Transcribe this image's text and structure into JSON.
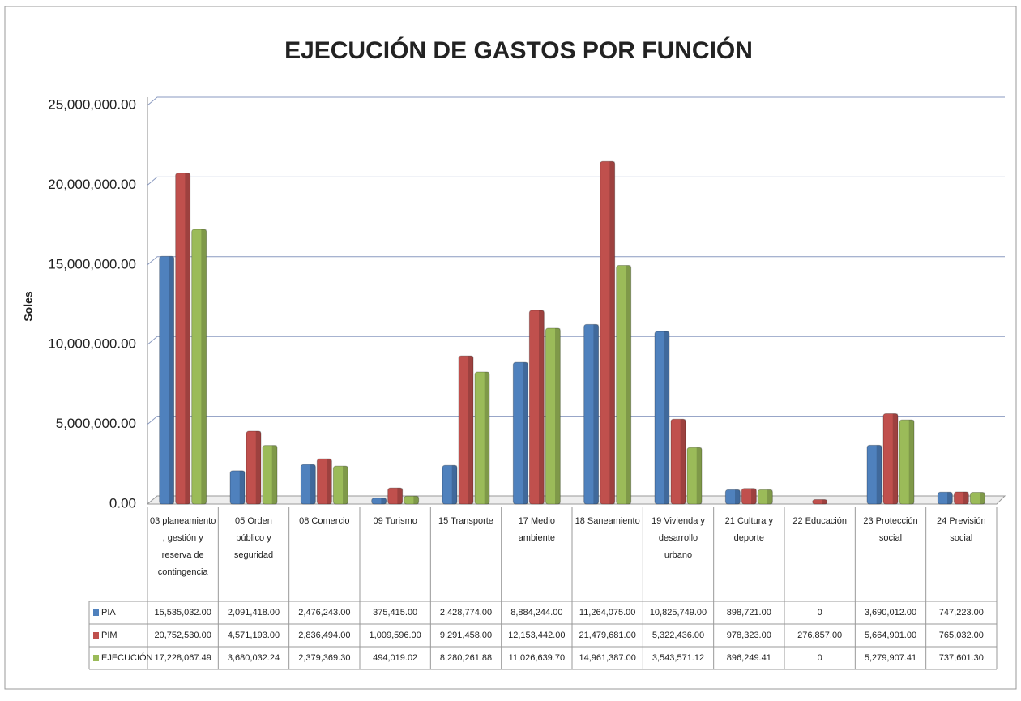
{
  "chart_data": {
    "type": "bar",
    "title": "EJECUCIÓN DE GASTOS POR FUNCIÓN",
    "y_label": "Soles",
    "categories": [
      "03 planeamiento , gestión y reserva de contingencia",
      "05 Orden público y seguridad",
      "08 Comercio",
      "09 Turismo",
      "15 Transporte",
      "17 Medio ambiente",
      "18 Saneamiento",
      "19 Vivienda y desarrollo urbano",
      "21 Cultura y deporte",
      "22 Educación",
      "23 Protección social",
      "24 Previsión social"
    ],
    "series": [
      {
        "name": "PIA",
        "color": "#4f81bd",
        "values": [
          15535032,
          2091418,
          2476243,
          375415,
          2428774,
          8884244,
          11264075,
          10825749,
          898721,
          0,
          3690012,
          747223
        ],
        "value_labels": [
          "15,535,032.00",
          "2,091,418.00",
          "2,476,243.00",
          "375,415.00",
          "2,428,774.00",
          "8,884,244.00",
          "11,264,075.00",
          "10,825,749.00",
          "898,721.00",
          "0",
          "3,690,012.00",
          "747,223.00"
        ]
      },
      {
        "name": "PIM",
        "color": "#c0504d",
        "values": [
          20752530,
          4571193,
          2836494,
          1009596,
          9291458,
          12153442,
          21479681,
          5322436,
          978323,
          276857,
          5664901,
          765032
        ],
        "value_labels": [
          "20,752,530.00",
          "4,571,193.00",
          "2,836,494.00",
          "1,009,596.00",
          "9,291,458.00",
          "12,153,442.00",
          "21,479,681.00",
          "5,322,436.00",
          "978,323.00",
          "276,857.00",
          "5,664,901.00",
          "765,032.00"
        ]
      },
      {
        "name": "EJECUCIÓN",
        "color": "#9bbb59",
        "values": [
          17228067.49,
          3680032.24,
          2379369.3,
          494019.02,
          8280261.88,
          11026639.7,
          14961387.0,
          3543571.12,
          896249.41,
          0,
          5279907.41,
          737601.3
        ],
        "value_labels": [
          "17,228,067.49",
          "3,680,032.24",
          "2,379,369.30",
          "494,019.02",
          "8,280,261.88",
          "11,026,639.70",
          "14,961,387.00",
          "3,543,571.12",
          "896,249.41",
          "0",
          "5,279,907.41",
          "737,601.30"
        ]
      }
    ],
    "ylim": [
      0,
      25000000
    ],
    "yticks": [
      {
        "value": 0,
        "label": "0.00"
      },
      {
        "value": 5000000,
        "label": "5,000,000.00"
      },
      {
        "value": 10000000,
        "label": "10,000,000.00"
      },
      {
        "value": 15000000,
        "label": "15,000,000.00"
      },
      {
        "value": 20000000,
        "label": "20,000,000.00"
      },
      {
        "value": 25000000,
        "label": "25,000,000.00"
      }
    ],
    "grid": true
  }
}
